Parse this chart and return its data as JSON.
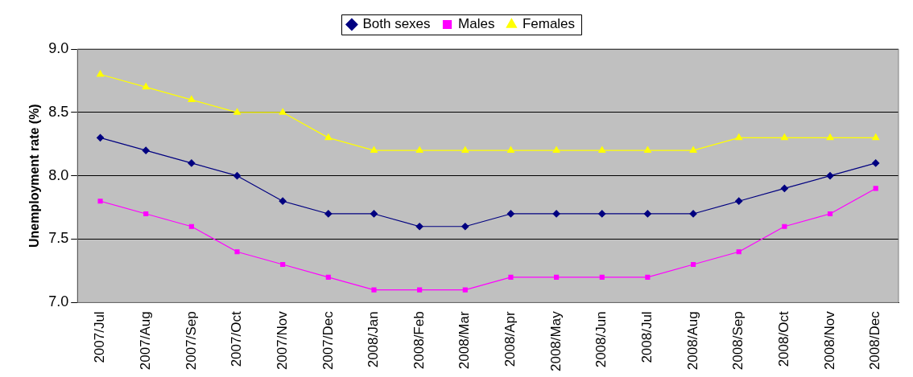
{
  "chart_data": {
    "type": "line",
    "ylabel": "Unemployment rate (%)",
    "categories": [
      "2007/Jul",
      "2007/Aug",
      "2007/Sep",
      "2007/Oct",
      "2007/Nov",
      "2007/Dec",
      "2008/Jan",
      "2008/Feb",
      "2008/Mar",
      "2008/Apr",
      "2008/May",
      "2008/Jun",
      "2008/Jul",
      "2008/Aug",
      "2008/Sep",
      "2008/Oct",
      "2008/Nov",
      "2008/Dec"
    ],
    "series": [
      {
        "name": "Both sexes",
        "color": "#000080",
        "marker": "diamond",
        "values": [
          8.3,
          8.2,
          8.1,
          8.0,
          7.8,
          7.7,
          7.7,
          7.6,
          7.6,
          7.7,
          7.7,
          7.7,
          7.7,
          7.7,
          7.8,
          7.9,
          8.0,
          8.1
        ]
      },
      {
        "name": "Males",
        "color": "#ff00ff",
        "marker": "square",
        "values": [
          7.8,
          7.7,
          7.6,
          7.4,
          7.3,
          7.2,
          7.1,
          7.1,
          7.1,
          7.2,
          7.2,
          7.2,
          7.2,
          7.3,
          7.4,
          7.6,
          7.7,
          7.9
        ]
      },
      {
        "name": "Females",
        "color": "#ffff00",
        "marker": "triangle",
        "values": [
          8.8,
          8.7,
          8.6,
          8.5,
          8.5,
          8.3,
          8.2,
          8.2,
          8.2,
          8.2,
          8.2,
          8.2,
          8.2,
          8.2,
          8.3,
          8.3,
          8.3,
          8.3
        ]
      }
    ],
    "ylim": [
      7.0,
      9.0
    ],
    "yticks": [
      {
        "value": 7,
        "label": "7.0"
      },
      {
        "value": 7.5,
        "label": "7.5"
      },
      {
        "value": 8,
        "label": "8.0"
      },
      {
        "value": 8.5,
        "label": "8.5"
      },
      {
        "value": 9,
        "label": "9.0"
      }
    ],
    "grid": "y",
    "legend": "top",
    "line_style": "solid"
  }
}
